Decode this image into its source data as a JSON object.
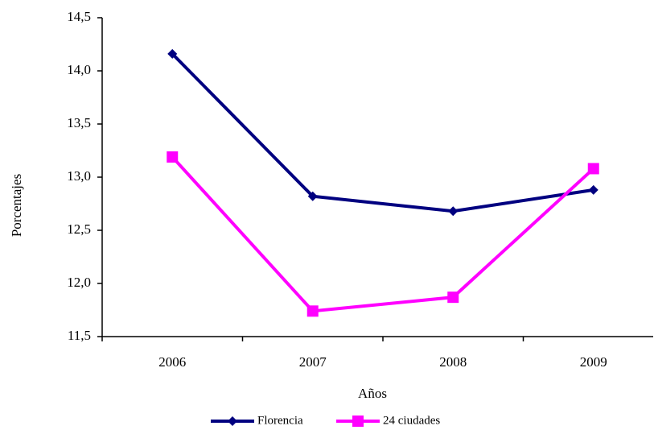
{
  "chart_data": {
    "type": "line",
    "categories": [
      "2006",
      "2007",
      "2008",
      "2009"
    ],
    "series": [
      {
        "name": "Florencia",
        "color": "#000080",
        "marker": "diamond",
        "values": [
          14.16,
          12.82,
          12.68,
          12.88
        ]
      },
      {
        "name": "24 ciudades",
        "color": "#ff00ff",
        "marker": "square",
        "values": [
          13.19,
          11.74,
          11.87,
          13.08
        ]
      }
    ],
    "ylim": [
      11.5,
      14.5
    ],
    "yticks": [
      {
        "value": 11.5,
        "label": "11,5"
      },
      {
        "value": 12,
        "label": "12,0"
      },
      {
        "value": 12.5,
        "label": "12,5"
      },
      {
        "value": 13,
        "label": "13,0"
      },
      {
        "value": 13.5,
        "label": "13,5"
      },
      {
        "value": 14,
        "label": "14,0"
      },
      {
        "value": 14.5,
        "label": "14,5"
      }
    ],
    "x_label": "Años",
    "y_label": "Porcentajes",
    "legend": "bottom"
  }
}
